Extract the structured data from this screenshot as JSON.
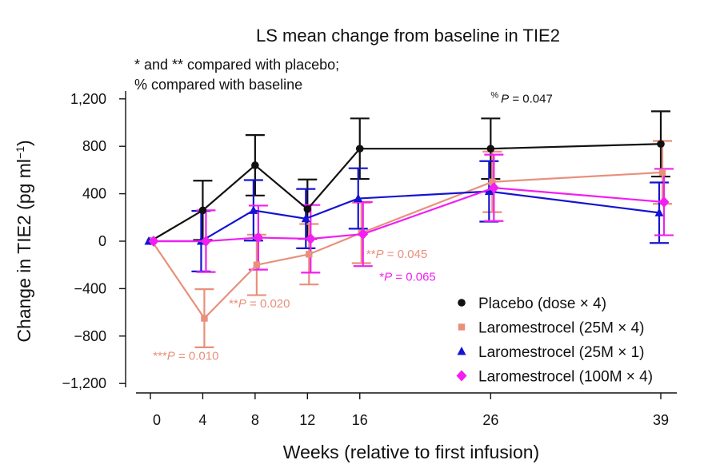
{
  "chart_data": {
    "type": "line",
    "title": "LS mean change from baseline in TIE2",
    "notes": [
      "* and ** compared with placebo;",
      "% compared with baseline"
    ],
    "note_glyph": "%",
    "xlabel": "Weeks (relative to first infusion)",
    "ylabel_main": "Change in TIE2 (pg ml",
    "ylabel_sup": "−1",
    "ylabel_close": ")",
    "x_ticks": [
      0,
      4,
      8,
      12,
      16,
      26,
      39
    ],
    "x_tick_labels": [
      "0",
      "4",
      "8",
      "12",
      "16",
      "26",
      "39"
    ],
    "y_ticks": [
      1200,
      800,
      400,
      0,
      -400,
      -800,
      -1200
    ],
    "y_tick_labels": [
      "1,200",
      "800",
      "400",
      "0",
      "−400",
      "−800",
      "−1,200"
    ],
    "ylim": [
      -1250,
      1300
    ],
    "series": [
      {
        "name": "Placebo (dose × 4)",
        "color": "#111111",
        "marker": "circle",
        "x": [
          0,
          4,
          8,
          12,
          16,
          26,
          39
        ],
        "y": [
          0,
          260,
          640,
          270,
          780,
          780,
          820
        ],
        "err": [
          0,
          250,
          255,
          250,
          255,
          255,
          275
        ]
      },
      {
        "name": "Laromestrocel (25M × 4)",
        "color": "#e8907c",
        "marker": "square",
        "x": [
          0,
          4,
          8,
          12,
          16,
          26,
          39
        ],
        "y": [
          0,
          -650,
          -200,
          -110,
          70,
          500,
          580
        ],
        "err": [
          0,
          245,
          255,
          255,
          255,
          255,
          265
        ]
      },
      {
        "name": "Laromestrocel (25M × 1)",
        "color": "#1414d2",
        "marker": "triangle",
        "x": [
          0,
          4,
          8,
          12,
          16,
          26,
          39
        ],
        "y": [
          0,
          0,
          260,
          190,
          360,
          420,
          240
        ],
        "err": [
          0,
          255,
          255,
          250,
          255,
          255,
          255
        ]
      },
      {
        "name": "Laromestrocel (100M × 4)",
        "color": "#f21ef2",
        "marker": "diamond",
        "x": [
          0,
          4,
          8,
          12,
          16,
          26,
          39
        ],
        "y": [
          0,
          0,
          30,
          20,
          60,
          450,
          330
        ],
        "err": [
          0,
          260,
          270,
          285,
          270,
          280,
          280
        ]
      }
    ],
    "annotations": [
      {
        "text_pre": "",
        "text_p": "P",
        "text_post": " = 0.047",
        "sup": "%",
        "color": "#111111",
        "x": 26,
        "y": 1170
      },
      {
        "text_pre": "**",
        "text_p": "P",
        "text_post": " = 0.045",
        "sup": "",
        "color": "#e8907c",
        "x": 16.5,
        "y": -140
      },
      {
        "text_pre": "*",
        "text_p": "P",
        "text_post": " = 0.065",
        "sup": "",
        "color": "#f21ef2",
        "x": 17.5,
        "y": -335
      },
      {
        "text_pre": "**",
        "text_p": "P",
        "text_post": " = 0.020",
        "sup": "",
        "color": "#e8907c",
        "x": 6,
        "y": -560
      },
      {
        "text_pre": "***",
        "text_p": "P",
        "text_post": " = 0.010",
        "sup": "",
        "color": "#e8907c",
        "x": 0.2,
        "y": -1000
      }
    ],
    "legend_position": "bottom-right"
  }
}
